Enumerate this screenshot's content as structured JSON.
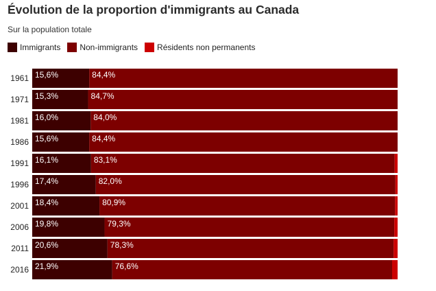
{
  "chart_data": {
    "type": "bar",
    "orientation": "horizontal",
    "stacked": true,
    "title": "Évolution de la proportion d'immigrants au Canada",
    "subtitle": "Sur la population totale",
    "categories": [
      "1961",
      "1971",
      "1981",
      "1986",
      "1991",
      "1996",
      "2001",
      "2006",
      "2011",
      "2016"
    ],
    "series": [
      {
        "name": "Immigrants",
        "color": "#3d0000",
        "values": [
          15.6,
          15.3,
          16.0,
          15.6,
          16.1,
          17.4,
          18.4,
          19.8,
          20.6,
          21.9
        ],
        "labels": [
          "15,6%",
          "15,3%",
          "16,0%",
          "15,6%",
          "16,1%",
          "17,4%",
          "18,4%",
          "19,8%",
          "20,6%",
          "21,9%"
        ]
      },
      {
        "name": "Non-immigrants",
        "color": "#7d0000",
        "values": [
          84.4,
          84.7,
          84.0,
          84.4,
          83.1,
          82.0,
          80.9,
          79.3,
          78.3,
          76.6
        ],
        "labels": [
          "84,4%",
          "84,7%",
          "84,0%",
          "84,4%",
          "83,1%",
          "82,0%",
          "80,9%",
          "79,3%",
          "78,3%",
          "76,6%"
        ]
      },
      {
        "name": "Résidents non permanents",
        "color": "#cc0000",
        "values": [
          0,
          0,
          0,
          0,
          0.8,
          0.6,
          0.7,
          0.9,
          1.1,
          1.5
        ]
      }
    ],
    "xlim": [
      0,
      100
    ],
    "grid": false,
    "legend_position": "top-left"
  }
}
